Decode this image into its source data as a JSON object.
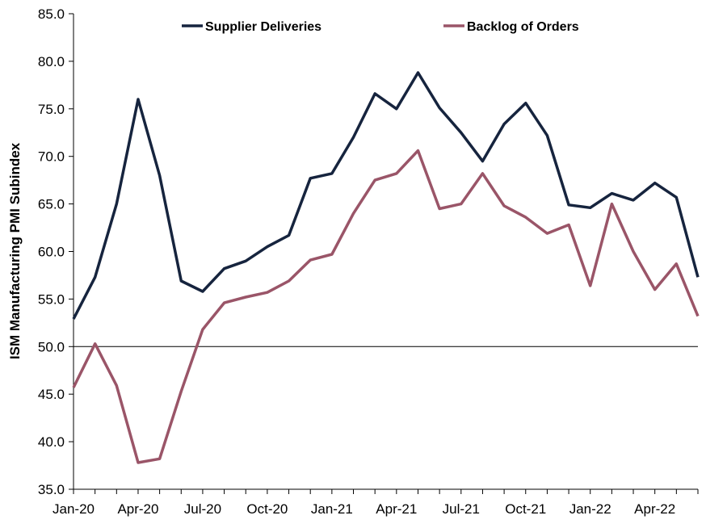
{
  "chart_data": {
    "type": "line",
    "title": "",
    "xlabel": "",
    "ylabel": "ISM Manufacturing PMI Subindex",
    "ylim": [
      35.0,
      85.0
    ],
    "yticks": [
      "35.0",
      "40.0",
      "45.0",
      "50.0",
      "55.0",
      "60.0",
      "65.0",
      "70.0",
      "75.0",
      "80.0",
      "85.0"
    ],
    "reference_line": 50.0,
    "x": [
      "Jan-20",
      "Feb-20",
      "Mar-20",
      "Apr-20",
      "May-20",
      "Jun-20",
      "Jul-20",
      "Aug-20",
      "Sep-20",
      "Oct-20",
      "Nov-20",
      "Dec-20",
      "Jan-21",
      "Feb-21",
      "Mar-21",
      "Apr-21",
      "May-21",
      "Jun-21",
      "Jul-21",
      "Aug-21",
      "Sep-21",
      "Oct-21",
      "Nov-21",
      "Dec-21",
      "Jan-22",
      "Feb-22",
      "Mar-22",
      "Apr-22",
      "May-22",
      "Jun-22"
    ],
    "xticks": [
      "Jan-20",
      "Apr-20",
      "Jul-20",
      "Oct-20",
      "Jan-21",
      "Apr-21",
      "Jul-21",
      "Oct-21",
      "Jan-22",
      "Apr-22"
    ],
    "legend_position": "top",
    "series": [
      {
        "name": "Supplier Deliveries",
        "color": "#16243e",
        "values": [
          52.9,
          57.3,
          65.0,
          76.0,
          68.0,
          56.9,
          55.8,
          58.2,
          59.0,
          60.5,
          61.7,
          67.7,
          68.2,
          72.0,
          76.6,
          75.0,
          78.8,
          75.1,
          72.5,
          69.5,
          73.4,
          75.6,
          72.2,
          64.9,
          64.6,
          66.1,
          65.4,
          67.2,
          65.7,
          57.3
        ]
      },
      {
        "name": "Backlog of Orders",
        "color": "#9a5568",
        "values": [
          45.7,
          50.3,
          45.9,
          37.8,
          38.2,
          45.3,
          51.8,
          54.6,
          55.2,
          55.7,
          56.9,
          59.1,
          59.7,
          64.0,
          67.5,
          68.2,
          70.6,
          64.5,
          65.0,
          68.2,
          64.8,
          63.6,
          61.9,
          62.8,
          56.4,
          65.0,
          60.0,
          56.0,
          58.7,
          53.2
        ]
      }
    ]
  }
}
